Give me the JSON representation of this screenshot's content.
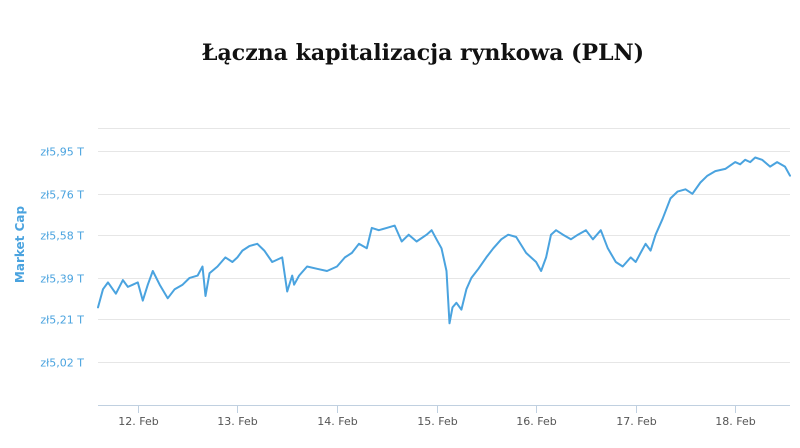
{
  "chart_data": {
    "type": "line",
    "title": "Łączna kapitalizacja rynkowa (PLN)",
    "xlabel": "",
    "ylabel": "Market Cap",
    "y_unit": "T PLN",
    "ylim": [
      4.83,
      6.05
    ],
    "y_ticks": [
      5.02,
      5.21,
      5.39,
      5.58,
      5.76,
      5.95
    ],
    "y_tick_labels": [
      "zł5,02 T",
      "zł5,21 T",
      "zł5,39 T",
      "zł5,58 T",
      "zł5,76 T",
      "zł5,95 T"
    ],
    "x_range": [
      11.6,
      18.55
    ],
    "x_ticks": [
      12,
      13,
      14,
      15,
      16,
      17,
      18
    ],
    "x_tick_labels": [
      "12. Feb",
      "13. Feb",
      "14. Feb",
      "15. Feb",
      "16. Feb",
      "17. Feb",
      "18. Feb"
    ],
    "grid": true,
    "legend": "none",
    "color": "#4aa3df",
    "series": [
      {
        "x": [
          11.6,
          11.65,
          11.7,
          11.78,
          11.85,
          11.9,
          11.95,
          12.0,
          12.05,
          12.1,
          12.15,
          12.22,
          12.3,
          12.37,
          12.45,
          12.52,
          12.6,
          12.65,
          12.68,
          12.72,
          12.8,
          12.88,
          12.95,
          13.0,
          13.05,
          13.12,
          13.2,
          13.27,
          13.35,
          13.45,
          13.5,
          13.55,
          13.57,
          13.62,
          13.7,
          13.8,
          13.9,
          14.0,
          14.08,
          14.15,
          14.22,
          14.3,
          14.35,
          14.42,
          14.5,
          14.58,
          14.65,
          14.72,
          14.8,
          14.9,
          14.95,
          15.0,
          15.05,
          15.1,
          15.13,
          15.16,
          15.2,
          15.25,
          15.3,
          15.35,
          15.42,
          15.5,
          15.57,
          15.65,
          15.72,
          15.8,
          15.9,
          16.0,
          16.05,
          16.1,
          16.15,
          16.2,
          16.27,
          16.35,
          16.42,
          16.5,
          16.57,
          16.65,
          16.72,
          16.8,
          16.87,
          16.95,
          17.0,
          17.05,
          17.1,
          17.15,
          17.2,
          17.27,
          17.35,
          17.42,
          17.5,
          17.57,
          17.65,
          17.72,
          17.8,
          17.9,
          18.0,
          18.05,
          18.1,
          18.15,
          18.2,
          18.27,
          18.35,
          18.42,
          18.5,
          18.55
        ],
        "values": [
          5.26,
          5.34,
          5.37,
          5.32,
          5.38,
          5.35,
          5.36,
          5.37,
          5.29,
          5.36,
          5.42,
          5.36,
          5.3,
          5.34,
          5.36,
          5.39,
          5.4,
          5.44,
          5.31,
          5.41,
          5.44,
          5.48,
          5.46,
          5.48,
          5.51,
          5.53,
          5.54,
          5.51,
          5.46,
          5.48,
          5.33,
          5.4,
          5.36,
          5.4,
          5.44,
          5.43,
          5.42,
          5.44,
          5.48,
          5.5,
          5.54,
          5.52,
          5.61,
          5.6,
          5.61,
          5.62,
          5.55,
          5.58,
          5.55,
          5.58,
          5.6,
          5.56,
          5.52,
          5.42,
          5.19,
          5.26,
          5.28,
          5.25,
          5.34,
          5.39,
          5.43,
          5.48,
          5.52,
          5.56,
          5.58,
          5.57,
          5.5,
          5.46,
          5.42,
          5.48,
          5.58,
          5.6,
          5.58,
          5.56,
          5.58,
          5.6,
          5.56,
          5.6,
          5.52,
          5.46,
          5.44,
          5.48,
          5.46,
          5.5,
          5.54,
          5.51,
          5.58,
          5.65,
          5.74,
          5.77,
          5.78,
          5.76,
          5.81,
          5.84,
          5.86,
          5.87,
          5.9,
          5.89,
          5.91,
          5.9,
          5.92,
          5.91,
          5.88,
          5.9,
          5.88,
          5.84
        ]
      }
    ]
  }
}
